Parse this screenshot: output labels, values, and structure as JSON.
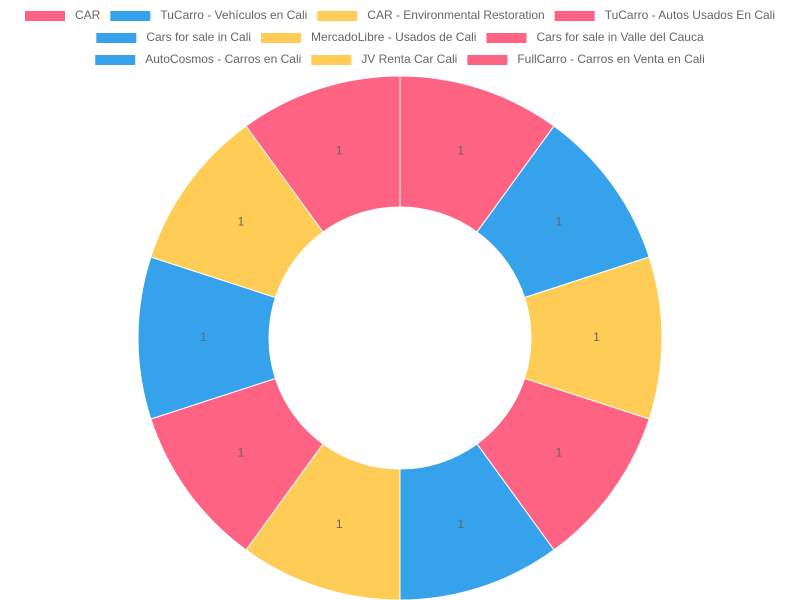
{
  "chart_data": {
    "type": "doughnut",
    "categories": [
      "CAR",
      "TuCarro - Vehículos en Cali",
      "CAR - Environmental Restoration",
      "TuCarro - Autos Usados En Cali",
      "Cars for sale in Cali",
      "MercadoLibre - Usados de Cali",
      "Cars for sale in Valle del Cauca",
      "AutoCosmos - Carros en Cali",
      "JV Renta Car Cali",
      "FullCarro - Carros en Venta en Cali"
    ],
    "values": [
      1,
      1,
      1,
      1,
      1,
      1,
      1,
      1,
      1,
      1
    ],
    "colors": [
      "#ff6384",
      "#36a2eb",
      "#ffcd56",
      "#ff6384",
      "#36a2eb",
      "#ffcd56",
      "#ff6384",
      "#36a2eb",
      "#ffcd56",
      "#ff6384"
    ],
    "legend": "top"
  }
}
